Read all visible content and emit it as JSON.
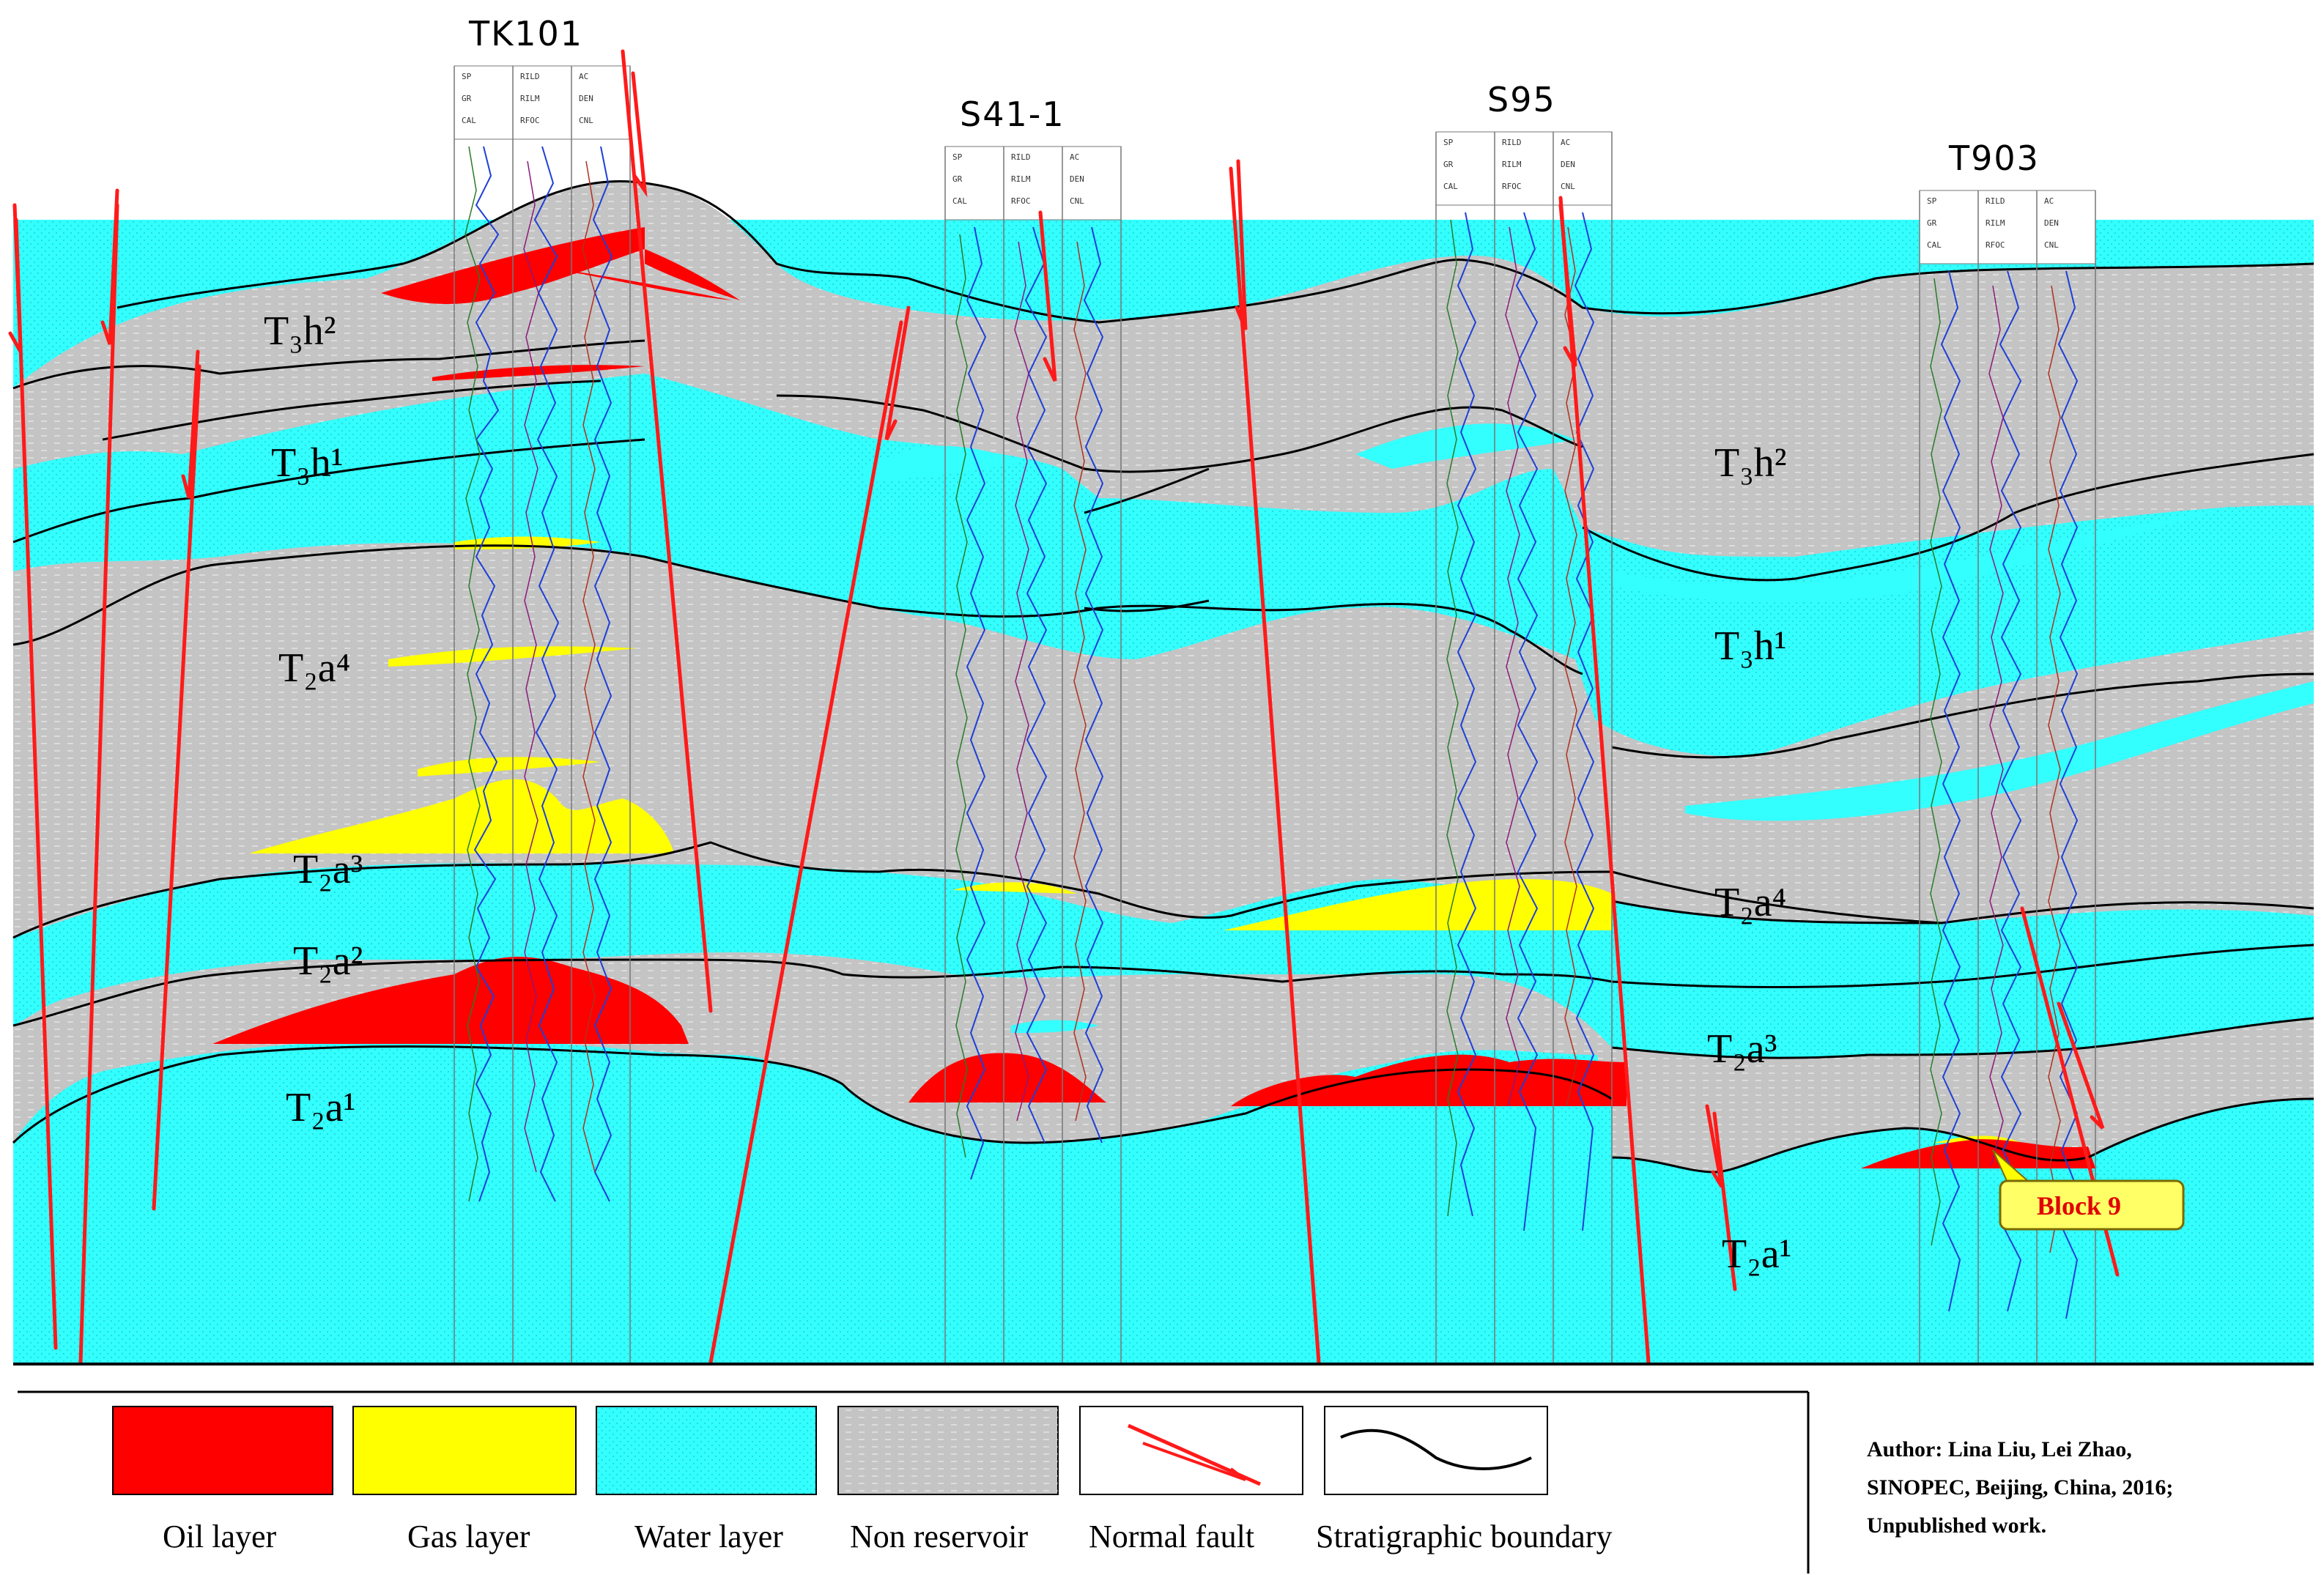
{
  "figure": {
    "wells": [
      {
        "name": "TK101"
      },
      {
        "name": "S41-1"
      },
      {
        "name": "S95"
      },
      {
        "name": "T903"
      }
    ],
    "log_header": {
      "curves_left": [
        "SP",
        "GR",
        "CAL"
      ],
      "curves_mid": [
        "RILD",
        "RILM",
        "RFOC"
      ],
      "curves_right": [
        "AC",
        "DEN",
        "CNL"
      ]
    },
    "unit_labels": {
      "t3h2": "T₃h²",
      "t3h1": "T₃h¹",
      "t2a4": "T₂a⁴",
      "t2a3": "T₂a³",
      "t2a2": "T₂a²",
      "t2a1": "T₂a¹"
    },
    "callout": {
      "label": "Block 9"
    }
  },
  "legend": {
    "items": [
      {
        "label": "Oil layer",
        "color": "#ff0000"
      },
      {
        "label": "Gas layer",
        "color": "#ffff00"
      },
      {
        "label": "Water layer",
        "color": "#33ffff"
      },
      {
        "label": "Non reservoir",
        "color": "#c4c4c4"
      },
      {
        "label": "Normal fault",
        "color": "#ff0000"
      },
      {
        "label": "Stratigraphic boundary",
        "color": "#000000"
      }
    ],
    "credit_lines": [
      "Author:  Lina  Liu,  Lei  Zhao,",
      "SINOPEC, Beijing, China, 2016;",
      "Unpublished work."
    ]
  },
  "colors": {
    "oil": "#ff0000",
    "gas": "#ffff00",
    "water": "#33ffff",
    "nonreservoir": "#c4c4c4",
    "fault": "#ff1a1a",
    "boundary": "#000000"
  }
}
